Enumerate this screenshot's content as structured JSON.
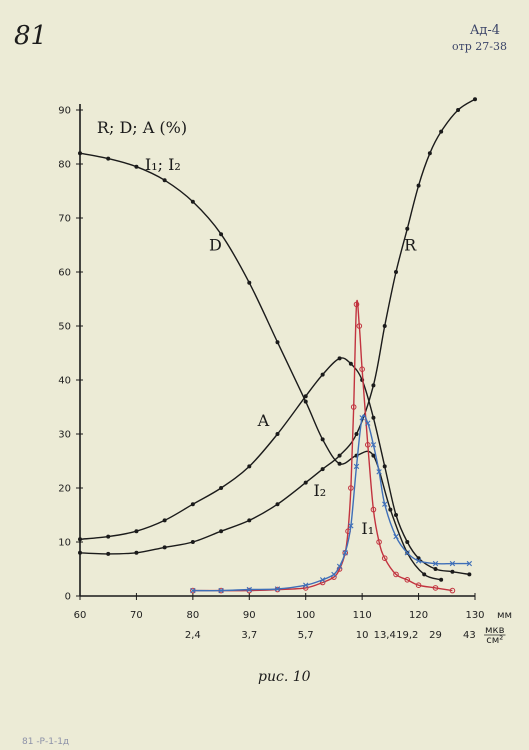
{
  "page": {
    "folio": "81",
    "corner_code_1": "Aд-4",
    "corner_code_2": "отр 27-38",
    "caption": "рис. 10",
    "bottom_note": "81 -Р-1-1д"
  },
  "chart_data": {
    "type": "line",
    "title": "R; D; A (%)",
    "subtitle": "I₁; I₂",
    "xunit": "мм",
    "xlim": [
      60,
      130
    ],
    "ylim": [
      0,
      90
    ],
    "x_ticks": [
      60,
      70,
      80,
      90,
      100,
      110,
      120,
      130
    ],
    "y_ticks": [
      0,
      10,
      20,
      30,
      40,
      50,
      60,
      70,
      80,
      90
    ],
    "secondary_x": {
      "unit_num": "мкв",
      "unit_den": "см²",
      "ticks": [
        {
          "x": 80,
          "label": "2,4"
        },
        {
          "x": 90,
          "label": "3,7"
        },
        {
          "x": 100,
          "label": "5,7"
        },
        {
          "x": 110,
          "label": "10"
        },
        {
          "x": 114,
          "label": "13,4"
        },
        {
          "x": 118,
          "label": "19,2"
        },
        {
          "x": 123,
          "label": "29"
        },
        {
          "x": 129,
          "label": "43"
        }
      ]
    },
    "series": [
      {
        "name": "D",
        "color": "#1b1b1b",
        "marker": "dot",
        "x": [
          60,
          65,
          70,
          75,
          80,
          85,
          90,
          95,
          100,
          103,
          106,
          109,
          112,
          115,
          118,
          121,
          124
        ],
        "y": [
          82,
          81,
          79.5,
          77,
          73,
          67,
          58,
          47,
          36,
          29,
          24.5,
          26,
          26,
          16,
          8,
          4,
          3
        ]
      },
      {
        "name": "R",
        "color": "#1b1b1b",
        "marker": "dot",
        "x": [
          60,
          65,
          70,
          75,
          80,
          85,
          90,
          95,
          100,
          103,
          106,
          109,
          112,
          114,
          116,
          118,
          120,
          122,
          124,
          127,
          130
        ],
        "y": [
          8,
          7.8,
          8,
          9,
          10,
          12,
          14,
          17,
          21,
          23.5,
          26,
          30,
          39,
          50,
          60,
          68,
          76,
          82,
          86,
          90,
          92
        ]
      },
      {
        "name": "A",
        "color": "#1b1b1b",
        "marker": "dot",
        "x": [
          60,
          65,
          70,
          75,
          80,
          85,
          90,
          95,
          100,
          103,
          106,
          108,
          110,
          112,
          114,
          116,
          118,
          120,
          123,
          126,
          129
        ],
        "y": [
          10.5,
          11,
          12,
          14,
          17,
          20,
          24,
          30,
          37,
          41,
          44,
          43,
          40,
          33,
          24,
          15,
          10,
          7,
          5,
          4.5,
          4
        ]
      },
      {
        "name": "I₂",
        "color": "#c2333f",
        "marker": "circle",
        "x": [
          80,
          85,
          90,
          95,
          100,
          103,
          105,
          106,
          107,
          107.5,
          108,
          108.5,
          109,
          109.5,
          110,
          111,
          112,
          113,
          114,
          116,
          118,
          120,
          123,
          126
        ],
        "y": [
          1,
          1,
          1,
          1.2,
          1.5,
          2.5,
          3.5,
          5,
          8,
          12,
          20,
          35,
          54,
          50,
          42,
          28,
          16,
          10,
          7,
          4,
          3,
          2,
          1.5,
          1
        ]
      },
      {
        "name": "I₁",
        "color": "#3f6fb8",
        "marker": "cross",
        "x": [
          80,
          85,
          90,
          95,
          100,
          103,
          105,
          106,
          107,
          108,
          109,
          110,
          111,
          112,
          113,
          114,
          116,
          118,
          120,
          123,
          126,
          129
        ],
        "y": [
          1,
          1,
          1.2,
          1.3,
          2,
          3,
          4,
          5.5,
          8,
          13,
          24,
          33,
          32,
          28,
          23,
          17,
          11,
          8,
          6.5,
          6,
          6,
          6
        ]
      }
    ],
    "annotations": [
      {
        "text": "D",
        "x": 84,
        "y": 64
      },
      {
        "text": "R",
        "x": 118.5,
        "y": 64
      },
      {
        "text": "A",
        "x": 92.5,
        "y": 31.5
      },
      {
        "text": "I₂",
        "x": 102.5,
        "y": 18.5
      },
      {
        "text": "I₁",
        "x": 111,
        "y": 11.5
      }
    ]
  }
}
